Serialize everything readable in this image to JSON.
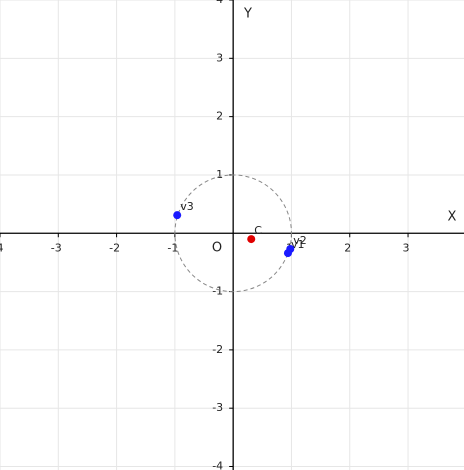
{
  "chart_data": {
    "type": "scatter",
    "x_label": "X",
    "y_label": "Y",
    "origin_label": "O",
    "xlim": [
      -4,
      3.96
    ],
    "ylim": [
      -4.06,
      4
    ],
    "xticks": [
      -4,
      -3,
      -2,
      -1,
      1,
      2,
      3
    ],
    "yticks": [
      -4,
      -3,
      -2,
      -1,
      1,
      2,
      3,
      4
    ],
    "grid": true,
    "circle": {
      "center": [
        0,
        0
      ],
      "radius": 1,
      "color": "#888888"
    },
    "points": [
      {
        "name": "v3",
        "x": -0.96,
        "y": 0.31,
        "color": "#1a1aff"
      },
      {
        "name": "v2",
        "x": 0.98,
        "y": -0.27,
        "color": "#1a1aff"
      },
      {
        "name": "v1",
        "x": 0.94,
        "y": -0.34,
        "color": "#1a1aff"
      },
      {
        "name": "C",
        "x": 0.31,
        "y": -0.1,
        "color": "#e00000"
      }
    ]
  }
}
